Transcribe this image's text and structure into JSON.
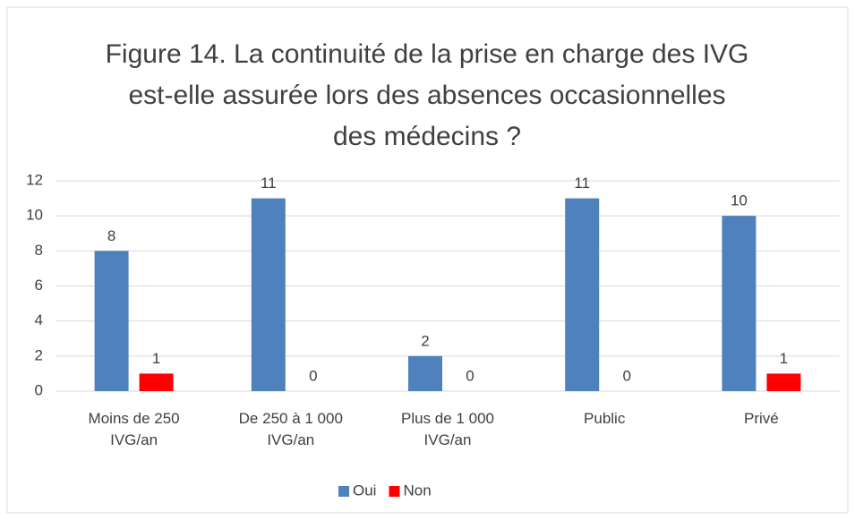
{
  "chart_data": {
    "type": "bar",
    "title": "Figure 14. La continuité de la prise en charge des IVG est-elle assurée lors des absences occasionnelles des médecins ?",
    "categories": [
      "Moins de 250 IVG/an",
      "De 250 à 1 000 IVG/an",
      "Plus de 1 000 IVG/an",
      "Public",
      "Privé"
    ],
    "series": [
      {
        "name": "Oui",
        "color": "#4f81bd",
        "values": [
          8,
          11,
          2,
          11,
          10
        ]
      },
      {
        "name": "Non",
        "color": "#ff0000",
        "values": [
          1,
          0,
          0,
          0,
          1
        ]
      }
    ],
    "ylim": [
      0,
      12
    ],
    "yticks": [
      0,
      2,
      4,
      6,
      8,
      10,
      12
    ],
    "grid": true,
    "legend": "bottom"
  }
}
